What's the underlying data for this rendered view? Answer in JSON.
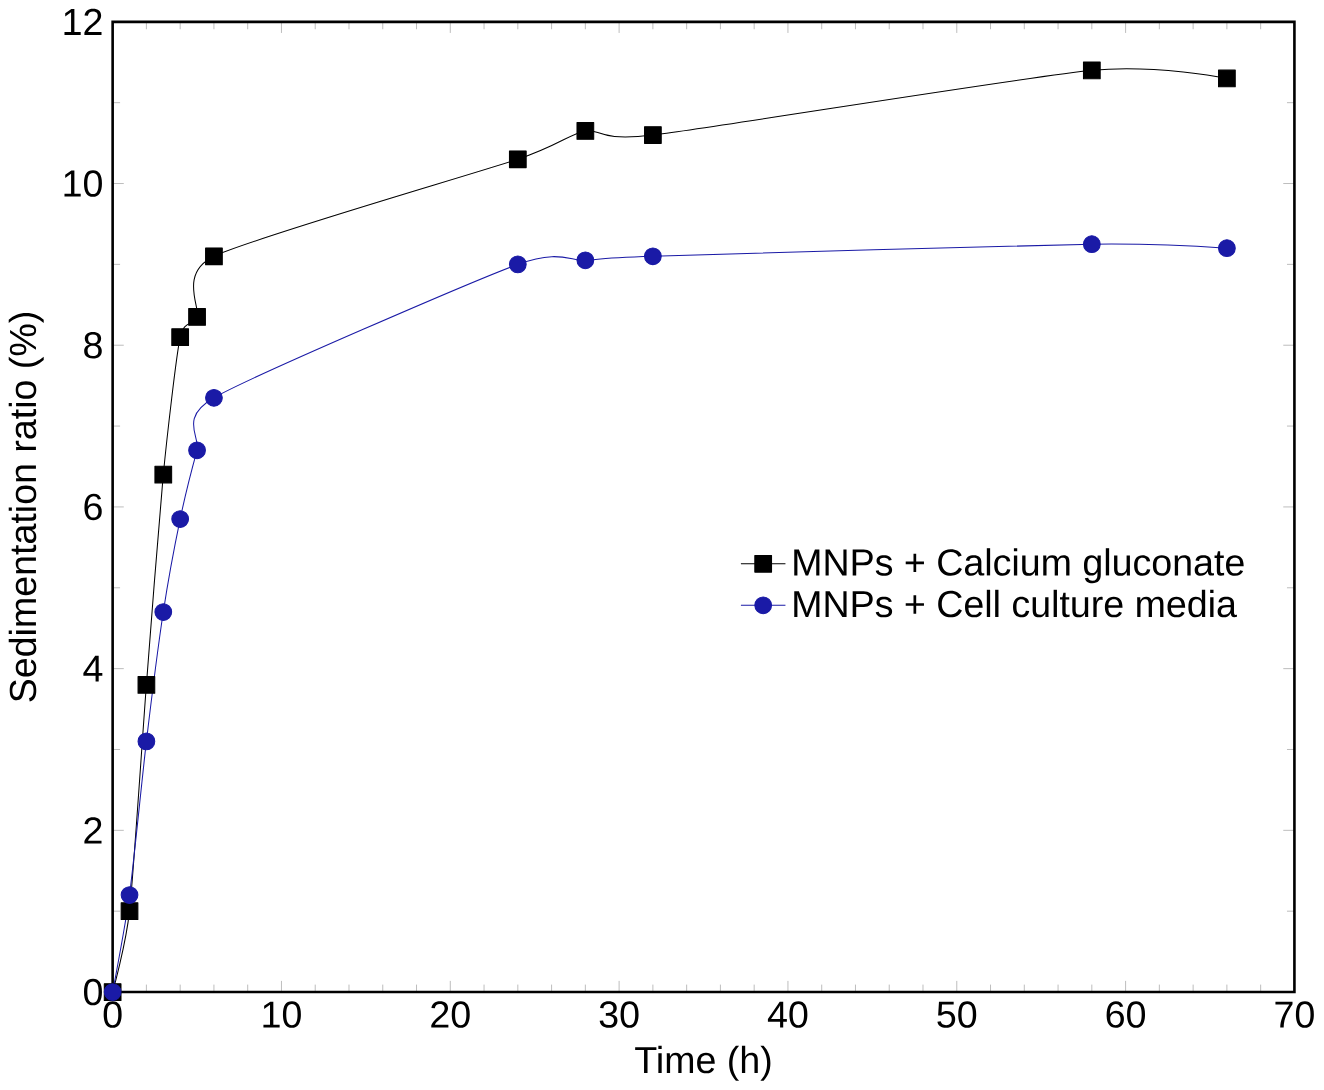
{
  "chart_data": {
    "type": "line",
    "xlabel": "Time (h)",
    "ylabel": "Sedimentation ratio (%)",
    "xlim": [
      0,
      70
    ],
    "ylim": [
      0,
      12
    ],
    "xticks": [
      0,
      10,
      20,
      30,
      40,
      50,
      60,
      70
    ],
    "yticks": [
      0,
      2,
      4,
      6,
      8,
      10,
      12
    ],
    "grid": false,
    "legend": "right",
    "line_style": "solid",
    "series": [
      {
        "name": "MNPs + Calcium gluconate",
        "color": "#000000",
        "marker": "square",
        "x": [
          0,
          1,
          2,
          3,
          4,
          5,
          6,
          24,
          28,
          32,
          58,
          66
        ],
        "values": [
          0,
          1.0,
          3.8,
          6.4,
          8.1,
          8.35,
          9.1,
          10.3,
          10.65,
          10.6,
          11.4,
          11.3
        ]
      },
      {
        "name": "MNPs + Cell culture media",
        "color": "#1a1aa6",
        "marker": "circle",
        "x": [
          0,
          1,
          2,
          3,
          4,
          5,
          6,
          24,
          28,
          32,
          58,
          66
        ],
        "values": [
          0,
          1.2,
          3.1,
          4.7,
          5.85,
          6.7,
          7.35,
          9.0,
          9.05,
          9.1,
          9.25,
          9.2
        ]
      }
    ]
  }
}
